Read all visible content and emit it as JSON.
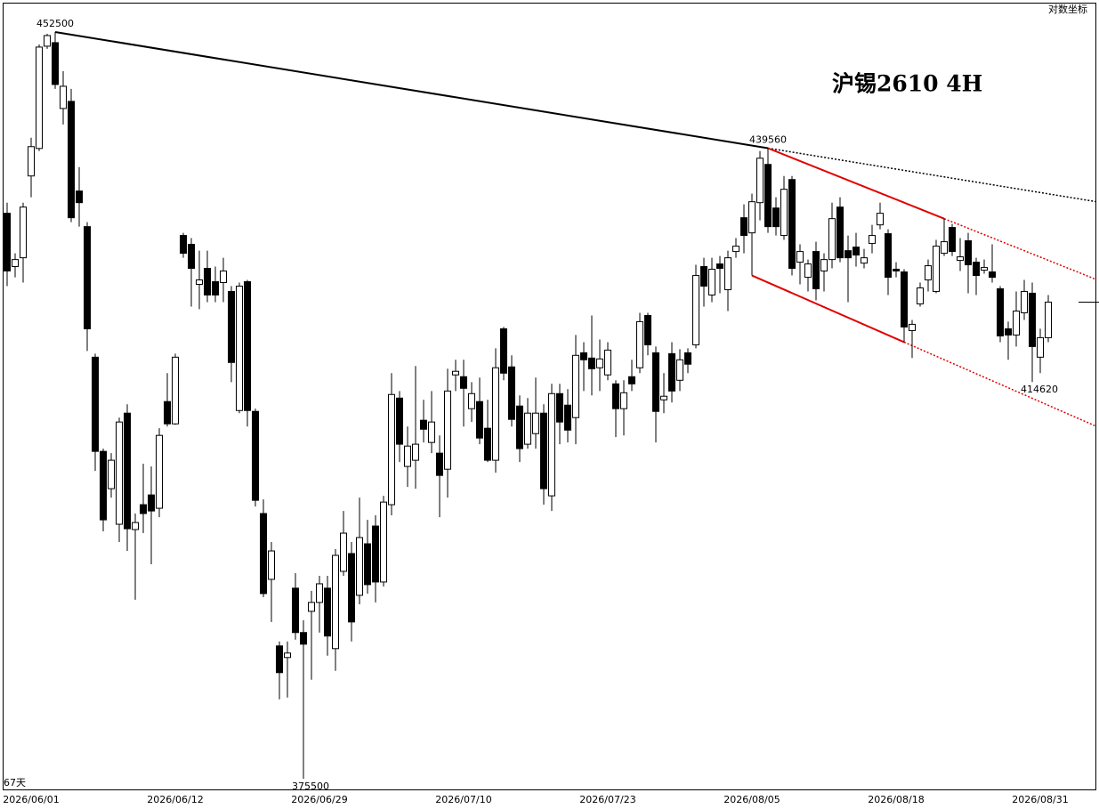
{
  "chart_data": {
    "type": "candlestick",
    "title": "沪锡2610  4H",
    "scale_label": "对数坐标",
    "bars_label": "67天",
    "log": true,
    "ylim": [
      374420,
      455830
    ],
    "up_color": "#ffffff",
    "down_color": "#000000",
    "trend_color": "#000000",
    "channel_color": "#e00000",
    "price_labels": [
      452500,
      439560,
      414620,
      375500
    ],
    "categories": [
      null,
      null,
      null,
      "2026/06/01",
      null,
      null,
      null,
      null,
      null,
      null,
      null,
      null,
      null,
      null,
      null,
      null,
      null,
      null,
      null,
      null,
      null,
      "2026/06/12",
      null,
      null,
      null,
      null,
      null,
      null,
      null,
      null,
      null,
      null,
      null,
      null,
      null,
      null,
      null,
      null,
      null,
      "2026/06/29",
      null,
      null,
      null,
      null,
      null,
      null,
      null,
      null,
      null,
      null,
      null,
      null,
      null,
      null,
      null,
      null,
      null,
      "2026/07/10",
      null,
      null,
      null,
      null,
      null,
      null,
      null,
      null,
      null,
      null,
      null,
      null,
      null,
      null,
      null,
      null,
      null,
      "2026/07/23",
      null,
      null,
      null,
      null,
      null,
      null,
      null,
      null,
      null,
      null,
      null,
      null,
      null,
      null,
      null,
      null,
      null,
      "2026/08/05",
      null,
      null,
      null,
      null,
      null,
      null,
      null,
      null,
      null,
      null,
      null,
      null,
      null,
      null,
      null,
      null,
      null,
      "2026/08/18",
      null,
      null,
      null,
      null,
      null,
      null,
      null,
      null,
      null,
      null,
      null,
      null,
      null,
      null,
      null,
      null,
      null,
      "2026/08/31",
      null
    ],
    "ohlc": [
      [
        432470,
        433620,
        424670,
        426280
      ],
      [
        426750,
        428170,
        425610,
        427500
      ],
      [
        427690,
        433620,
        425050,
        433140
      ],
      [
        436520,
        440710,
        434200,
        439730
      ],
      [
        439530,
        451100,
        439240,
        450800
      ],
      [
        450900,
        452300,
        450600,
        452100
      ],
      [
        451300,
        452500,
        446120,
        446610
      ],
      [
        443940,
        448100,
        442170,
        446410
      ],
      [
        444730,
        446120,
        431510,
        431990
      ],
      [
        434880,
        437490,
        431030,
        433620
      ],
      [
        431030,
        431510,
        417850,
        420170
      ],
      [
        417200,
        417570,
        405510,
        407500
      ],
      [
        407500,
        407780,
        399440,
        400590
      ],
      [
        403720,
        407320,
        402820,
        406600
      ],
      [
        400150,
        410950,
        398380,
        410500
      ],
      [
        411410,
        412320,
        397490,
        399700
      ],
      [
        399620,
        401220,
        392670,
        400320
      ],
      [
        402110,
        406240,
        399260,
        401220
      ],
      [
        403090,
        405970,
        396170,
        401480
      ],
      [
        401750,
        409860,
        400860,
        409130
      ],
      [
        412600,
        415540,
        410040,
        410310
      ],
      [
        410310,
        417570,
        410220,
        417200
      ],
      [
        430080,
        430360,
        427690,
        428170
      ],
      [
        429130,
        429800,
        422510,
        426560
      ],
      [
        424860,
        428450,
        422230,
        425330
      ],
      [
        426560,
        428450,
        422980,
        423730
      ],
      [
        425140,
        426750,
        422980,
        423730
      ],
      [
        425050,
        427690,
        422980,
        426280
      ],
      [
        424110,
        424670,
        414610,
        416650
      ],
      [
        411680,
        425050,
        411410,
        424670
      ],
      [
        425140,
        425330,
        410040,
        411680
      ],
      [
        411590,
        411870,
        401930,
        402550
      ],
      [
        401220,
        402640,
        392930,
        393280
      ],
      [
        394680,
        398380,
        390500,
        397490
      ],
      [
        388170,
        388600,
        383030,
        385590
      ],
      [
        387050,
        388600,
        383200,
        387480
      ],
      [
        393810,
        395290,
        388780,
        389470
      ],
      [
        389470,
        390670,
        375500,
        388340
      ],
      [
        391540,
        393550,
        384910,
        392410
      ],
      [
        392410,
        395030,
        389470,
        394240
      ],
      [
        393810,
        395030,
        387220,
        389130
      ],
      [
        387910,
        397670,
        385760,
        397050
      ],
      [
        395470,
        401480,
        395030,
        399260
      ],
      [
        397230,
        398380,
        388600,
        390500
      ],
      [
        393110,
        402820,
        392230,
        398820
      ],
      [
        398200,
        400590,
        393280,
        394160
      ],
      [
        399970,
        401040,
        392410,
        394420
      ],
      [
        394420,
        403000,
        393980,
        402370
      ],
      [
        402110,
        415540,
        401040,
        413330
      ],
      [
        412960,
        413690,
        406420,
        408230
      ],
      [
        405970,
        410040,
        403900,
        408040
      ],
      [
        406600,
        416280,
        403720,
        408230
      ],
      [
        410680,
        412780,
        408410,
        409760
      ],
      [
        408410,
        413690,
        407320,
        410500
      ],
      [
        407320,
        409130,
        400860,
        405060
      ],
      [
        405690,
        416000,
        402820,
        413690
      ],
      [
        415360,
        416930,
        413690,
        415730
      ],
      [
        415170,
        416930,
        410040,
        413970
      ],
      [
        411870,
        414610,
        410500,
        413420
      ],
      [
        412600,
        415080,
        408230,
        408860
      ],
      [
        409860,
        412780,
        406420,
        406600
      ],
      [
        406600,
        418120,
        405330,
        416100
      ],
      [
        420170,
        420360,
        414800,
        415540
      ],
      [
        416190,
        417390,
        410040,
        410770
      ],
      [
        412140,
        413240,
        406420,
        407780
      ],
      [
        408230,
        412960,
        407780,
        411410
      ],
      [
        409310,
        415080,
        407780,
        411410
      ],
      [
        411410,
        412320,
        402110,
        403720
      ],
      [
        403000,
        414430,
        401480,
        413420
      ],
      [
        413420,
        414430,
        408230,
        410500
      ],
      [
        412230,
        413880,
        408410,
        409670
      ],
      [
        410950,
        419520,
        408230,
        417390
      ],
      [
        417660,
        418770,
        413690,
        416930
      ],
      [
        417110,
        421570,
        413240,
        416000
      ],
      [
        416100,
        419050,
        413690,
        417020
      ],
      [
        415360,
        418770,
        414800,
        417940
      ],
      [
        414430,
        414800,
        408950,
        411870
      ],
      [
        411870,
        414800,
        409130,
        413510
      ],
      [
        415170,
        416930,
        413690,
        414430
      ],
      [
        416100,
        421850,
        415540,
        420920
      ],
      [
        421570,
        421850,
        417390,
        418490
      ],
      [
        417660,
        418310,
        408410,
        411590
      ],
      [
        412780,
        415540,
        411410,
        413150
      ],
      [
        417570,
        418770,
        412510,
        413690
      ],
      [
        414800,
        418030,
        413690,
        416930
      ],
      [
        417660,
        418120,
        415540,
        416470
      ],
      [
        418490,
        426940,
        418120,
        425800
      ],
      [
        426750,
        427690,
        422510,
        424670
      ],
      [
        423730,
        427690,
        422980,
        426470
      ],
      [
        427030,
        427880,
        423920,
        426560
      ],
      [
        424290,
        428450,
        422040,
        427690
      ],
      [
        428360,
        429800,
        427690,
        428930
      ],
      [
        431990,
        433430,
        428170,
        430080
      ],
      [
        430360,
        434590,
        425800,
        433720
      ],
      [
        433620,
        439240,
        431700,
        438460
      ],
      [
        437780,
        439560,
        430360,
        431030
      ],
      [
        433040,
        434200,
        430080,
        431030
      ],
      [
        430080,
        436520,
        429610,
        435070
      ],
      [
        436130,
        436520,
        425800,
        426560
      ],
      [
        427220,
        429130,
        424860,
        428360
      ],
      [
        425610,
        427500,
        424110,
        427030
      ],
      [
        428360,
        429410,
        423160,
        424390
      ],
      [
        426280,
        428170,
        424110,
        427500
      ],
      [
        427500,
        433620,
        426560,
        431890
      ],
      [
        433140,
        434200,
        427220,
        427690
      ],
      [
        428450,
        430080,
        422980,
        427690
      ],
      [
        428830,
        430360,
        426750,
        427980
      ],
      [
        427120,
        428640,
        426560,
        427690
      ],
      [
        429220,
        431220,
        428170,
        430080
      ],
      [
        431220,
        433620,
        430740,
        432470
      ],
      [
        430270,
        430740,
        423730,
        425610
      ],
      [
        426470,
        427220,
        425610,
        426280
      ],
      [
        426180,
        426470,
        418770,
        420360
      ],
      [
        419980,
        421100,
        417110,
        420640
      ],
      [
        422790,
        425050,
        422510,
        424480
      ],
      [
        425330,
        427500,
        424110,
        426840
      ],
      [
        424110,
        429610,
        423920,
        428930
      ],
      [
        428170,
        431890,
        427880,
        429410
      ],
      [
        430940,
        431320,
        427880,
        428360
      ],
      [
        427410,
        429800,
        426280,
        427790
      ],
      [
        429510,
        430360,
        423920,
        426940
      ],
      [
        427220,
        427690,
        423730,
        425800
      ],
      [
        426370,
        427500,
        425990,
        426650
      ],
      [
        426180,
        429130,
        425050,
        425610
      ],
      [
        424390,
        424670,
        418770,
        419420
      ],
      [
        420170,
        420920,
        416930,
        419520
      ],
      [
        419520,
        424110,
        418310,
        422040
      ],
      [
        421850,
        425330,
        421100,
        424110
      ],
      [
        423920,
        425050,
        414620,
        418310
      ],
      [
        417200,
        420170,
        415540,
        419240
      ],
      [
        419240,
        423730,
        418770,
        422980
      ]
    ]
  }
}
